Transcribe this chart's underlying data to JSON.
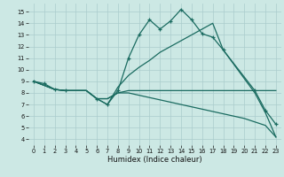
{
  "xlabel": "Humidex (Indice chaleur)",
  "xlim": [
    -0.5,
    23.5
  ],
  "ylim": [
    3.5,
    15.7
  ],
  "xticks": [
    0,
    1,
    2,
    3,
    4,
    5,
    6,
    7,
    8,
    9,
    10,
    11,
    12,
    13,
    14,
    15,
    16,
    17,
    18,
    19,
    20,
    21,
    22,
    23
  ],
  "yticks": [
    4,
    5,
    6,
    7,
    8,
    9,
    10,
    11,
    12,
    13,
    14,
    15
  ],
  "background_color": "#cce8e4",
  "grid_color": "#aacccc",
  "line_color": "#1a6b60",
  "line1_x": [
    0,
    1,
    2,
    3,
    4,
    5,
    6,
    7,
    8,
    9,
    10,
    11,
    12,
    13,
    14,
    15,
    16,
    17,
    18,
    21,
    22,
    23
  ],
  "line1_y": [
    9.0,
    8.8,
    8.3,
    8.2,
    8.2,
    8.2,
    7.5,
    7.0,
    8.2,
    11.0,
    13.0,
    14.3,
    13.5,
    14.2,
    15.2,
    14.3,
    13.1,
    12.8,
    11.7,
    8.2,
    6.5,
    5.3
  ],
  "line1_markers_x": [
    0,
    1,
    2,
    3,
    6,
    7,
    8,
    9,
    10,
    11,
    12,
    13,
    14,
    15,
    16,
    17,
    18,
    21,
    22,
    23
  ],
  "line1_markers_y": [
    9.0,
    8.8,
    8.3,
    8.2,
    7.5,
    7.0,
    8.2,
    11.0,
    13.0,
    14.3,
    13.5,
    14.2,
    15.2,
    14.3,
    13.1,
    12.8,
    11.7,
    8.2,
    6.5,
    5.3
  ],
  "line2_x": [
    0,
    2,
    3,
    4,
    5,
    6,
    7,
    8,
    9,
    10,
    11,
    12,
    13,
    14,
    15,
    16,
    17,
    18,
    21,
    22,
    23
  ],
  "line2_y": [
    9.0,
    8.3,
    8.2,
    8.2,
    8.2,
    7.5,
    7.0,
    8.5,
    9.5,
    10.2,
    10.8,
    11.5,
    12.0,
    12.5,
    13.0,
    13.5,
    14.0,
    11.7,
    8.0,
    6.3,
    4.2
  ],
  "line3_x": [
    0,
    2,
    3,
    4,
    5,
    6,
    7,
    8,
    9,
    10,
    11,
    12,
    13,
    14,
    15,
    16,
    17,
    18,
    19,
    20,
    21,
    22,
    23
  ],
  "line3_y": [
    9.0,
    8.3,
    8.2,
    8.2,
    8.2,
    7.5,
    7.5,
    8.0,
    8.2,
    8.2,
    8.2,
    8.2,
    8.2,
    8.2,
    8.2,
    8.2,
    8.2,
    8.2,
    8.2,
    8.2,
    8.2,
    8.2,
    8.2
  ],
  "line4_x": [
    0,
    2,
    3,
    4,
    5,
    6,
    7,
    8,
    9,
    10,
    11,
    12,
    13,
    14,
    15,
    16,
    17,
    18,
    19,
    20,
    21,
    22,
    23
  ],
  "line4_y": [
    9.0,
    8.3,
    8.2,
    8.2,
    8.2,
    7.5,
    7.5,
    8.0,
    8.0,
    7.8,
    7.6,
    7.4,
    7.2,
    7.0,
    6.8,
    6.6,
    6.4,
    6.2,
    6.0,
    5.8,
    5.5,
    5.2,
    4.2
  ]
}
